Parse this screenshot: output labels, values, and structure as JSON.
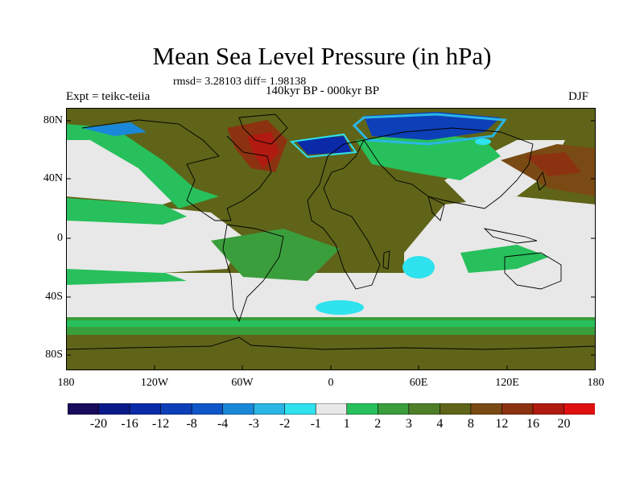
{
  "title": "Mean Sea Level Pressure (in hPa)",
  "stats_text": "rmsd= 3.28103 diff= 1.98138",
  "experiment_label": "Expt = teikc-teiia",
  "subtitle": "140kyr BP - 000kyr BP",
  "season": "DJF",
  "axes": {
    "y_ticks": [
      "80N",
      "40N",
      "0",
      "40S",
      "80S"
    ],
    "x_ticks": [
      "180",
      "120W",
      "60W",
      "0",
      "60E",
      "120E",
      "180"
    ]
  },
  "colorbar": {
    "colors": [
      "#1a0a5a",
      "#0b1a8a",
      "#0a2aa8",
      "#0d3fb8",
      "#0f56c8",
      "#1a88d8",
      "#2ab6e4",
      "#2ee2ee",
      "#e8e8e8",
      "#27c05c",
      "#3a9e3c",
      "#4f7e28",
      "#5f6418",
      "#7a4a14",
      "#8c3210",
      "#b01a10",
      "#e01010"
    ],
    "labels": [
      "-20",
      "-16",
      "-12",
      "-8",
      "-4",
      "-3",
      "-2",
      "-1",
      "1",
      "2",
      "3",
      "4",
      "8",
      "12",
      "16",
      "20"
    ]
  }
}
